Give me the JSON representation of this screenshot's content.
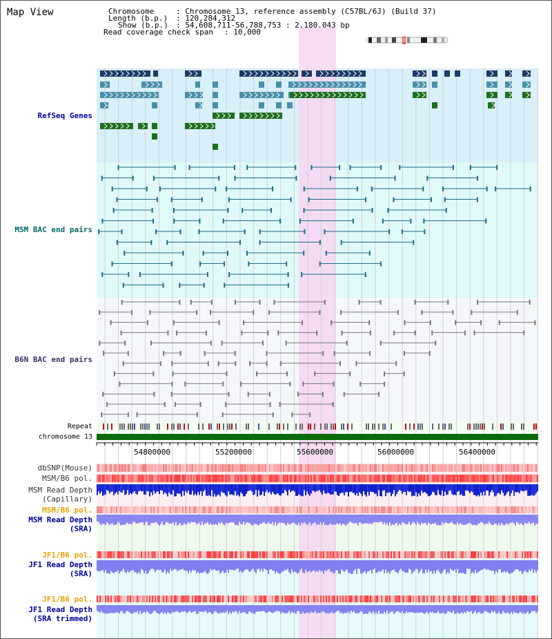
{
  "page": {
    "title": "Map View"
  },
  "info": {
    "chromosome_label": "Chromosome",
    "chromosome_value": ": Chromosome 13, reference assembly (C57BL/6J) (Build 37)",
    "length_label": "Length (b.p.)",
    "length_value": ": 120,284,312",
    "show_label": "Show (b.p.)",
    "show_value": ": 54,608,711-56,788,753 : 2,180,043 bp",
    "coverage_label": "Read coverage check span",
    "coverage_value": ": 10,000"
  },
  "tracks": {
    "refseq": "RefSeq Genes",
    "msm_bac": "MSM BAC end pairs",
    "b6n_bac": "B6N BAC end pairs",
    "repeat": "Repeat",
    "chromosome": "chromosome 13",
    "dbsnp": "dbSNP(Mouse)",
    "msm_b6_pol": "MSM/B6 pol.",
    "msm_read_depth_cap_1": "MSM Read Depth",
    "msm_read_depth_cap_2": "(Capillary)",
    "msm_b6_pol_sra": "MSM/B6 pol.",
    "msm_read_depth_sra_1": "MSM Read Depth",
    "msm_read_depth_sra_2": "(SRA)",
    "jf1_b6_pol": "JF1/B6 pol.",
    "jf1_read_depth_sra_1": "JF1 Read Depth",
    "jf1_read_depth_sra_2": "(SRA)",
    "jf1_b6_pol_trim": "JF1/B6 pol.",
    "jf1_read_depth_trim_1": "JF1 Read Depth",
    "jf1_read_depth_trim_2": "(SRA trimmed)"
  },
  "axis": {
    "ticks": [
      "54800000",
      "55200000",
      "55600000",
      "56000000",
      "56400000"
    ]
  },
  "colors": {
    "refseq_bg": "#d9effa",
    "msm_bg": "#e0fafa",
    "b6n_bg": "#f5f8fb",
    "highlight": "#f6d6f1",
    "gene_dark": "#1b3a66",
    "gene_mid": "#4a8faa",
    "gene_green": "#1e6e1e",
    "msm_pair": "#1a6a8a",
    "b6n_pair": "#777777",
    "chrom_green": "#0b6b0b",
    "label_blue": "#000099",
    "label_orange": "#e8a000",
    "label_teal": "#006666"
  }
}
